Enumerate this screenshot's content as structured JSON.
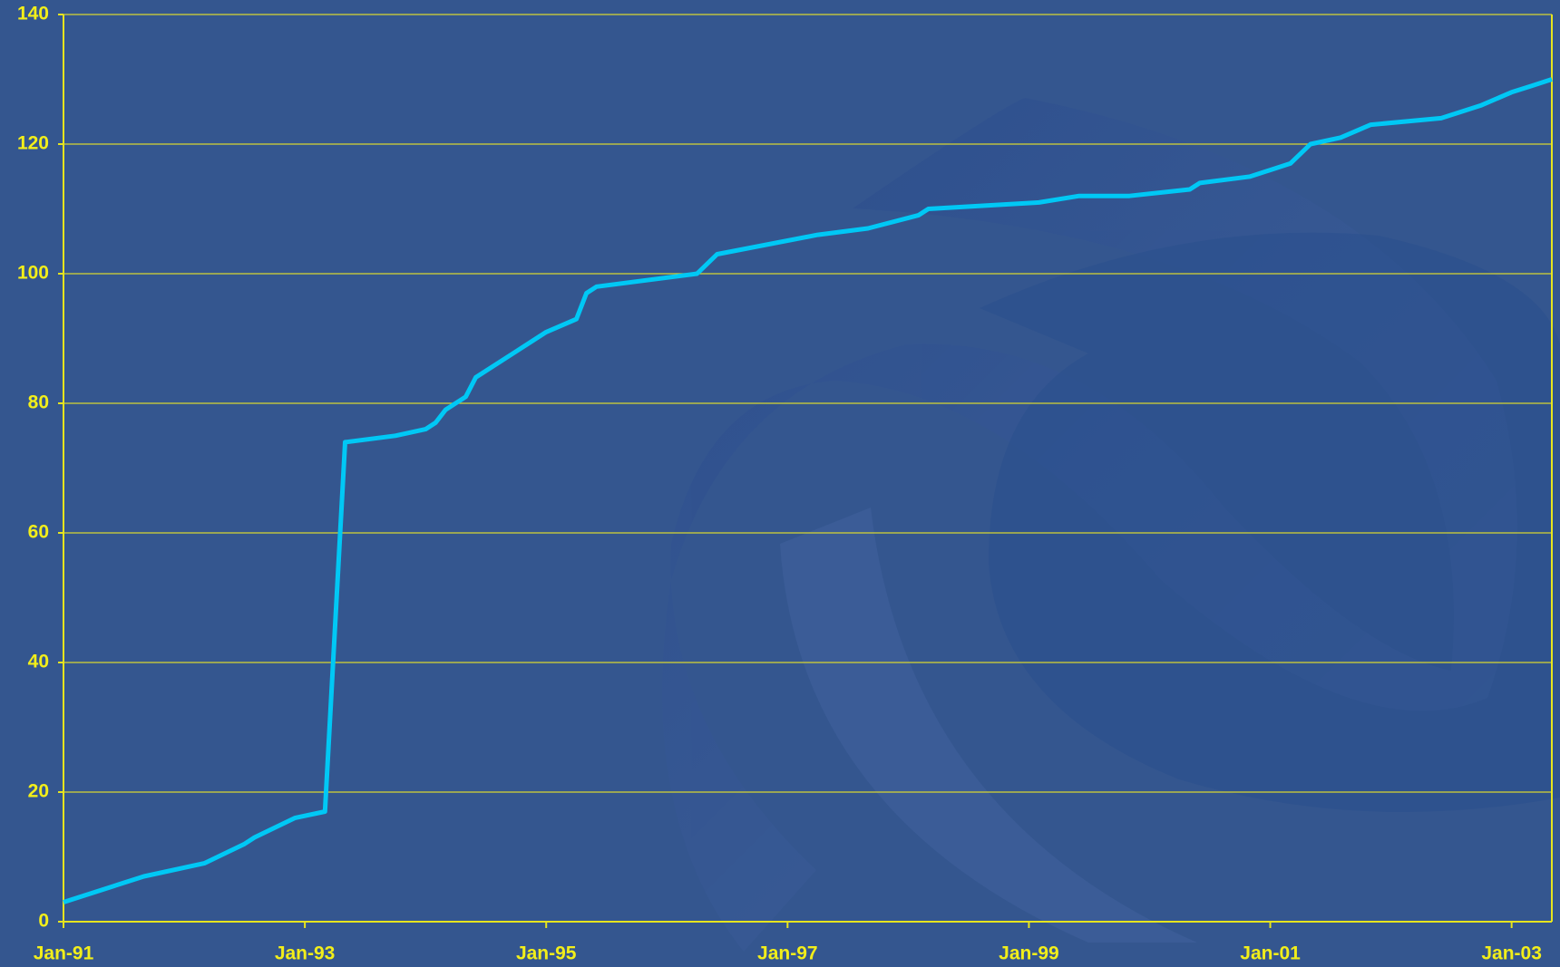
{
  "chart_data": {
    "type": "line",
    "x": [
      "Jan-91",
      "Sep-91",
      "Mar-92",
      "Jul-92",
      "Aug-92",
      "Dec-92",
      "Mar-93",
      "May-93",
      "Oct-93",
      "Jan-94",
      "Feb-94",
      "Mar-94",
      "May-94",
      "Jun-94",
      "Oct-94",
      "Jan-95",
      "Apr-95",
      "May-95",
      "Jun-95",
      "Apr-96",
      "Jun-96",
      "Apr-97",
      "Sep-97",
      "Feb-98",
      "Mar-98",
      "Feb-99",
      "Jun-99",
      "Nov-99",
      "May-00",
      "Jun-00",
      "Nov-00",
      "Mar-01",
      "May-01",
      "Aug-01",
      "Nov-01",
      "Jun-02",
      "Oct-02",
      "Jan-03",
      "Mar-03",
      "May-03"
    ],
    "series": [
      {
        "color": "#00c8f5",
        "values": [
          3,
          7,
          9,
          12,
          13,
          16,
          17,
          74,
          75,
          76,
          77,
          79,
          81,
          84,
          88,
          91,
          93,
          97,
          98,
          100,
          103,
          106,
          107,
          109,
          110,
          111,
          112,
          112,
          113,
          114,
          115,
          117,
          120,
          121,
          123,
          124,
          126,
          128,
          129,
          130
        ]
      }
    ],
    "xlim": [
      "Jan-91",
      "May-03"
    ],
    "xticks": [
      "Jan-91",
      "Jan-93",
      "Jan-95",
      "Jan-97",
      "Jan-99",
      "Jan-01",
      "Jan-03"
    ],
    "ylim": [
      0,
      140
    ],
    "yticks": [
      0,
      20,
      40,
      60,
      80,
      100,
      120,
      140
    ],
    "grid": true
  }
}
